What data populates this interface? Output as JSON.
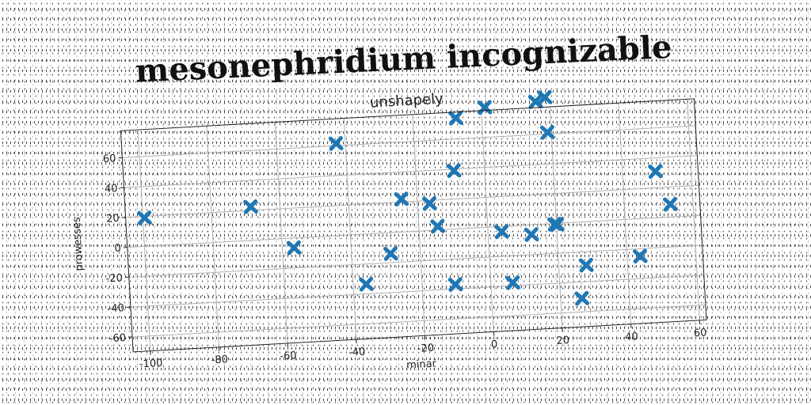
{
  "page": {
    "title": "mesonephridium incognizable"
  },
  "chart_data": {
    "type": "scatter",
    "title": "unshapely",
    "xlabel": "minar",
    "ylabel": "prowesses",
    "xlim": [
      -105,
      62
    ],
    "ylim": [
      -70,
      78
    ],
    "xticks": [
      -100,
      -80,
      -60,
      -40,
      -20,
      0,
      20,
      40,
      60
    ],
    "yticks": [
      -60,
      -40,
      -20,
      0,
      20,
      40,
      60
    ],
    "grid": true,
    "marker": "X",
    "color": "#1f77b4",
    "series": [
      {
        "x": [
          -99.5,
          -68.5,
          -56.6,
          -42.7,
          -36.2,
          -28.6,
          -24.6,
          -16.5,
          -14.5,
          -10.3,
          -8.9,
          -7.5,
          1.1,
          4.0,
          6.4,
          12.6,
          15.9,
          18.7,
          18.9,
          19.5,
          20.2,
          26.2,
          28.0,
          43.8,
          49.6,
          53.4
        ],
        "y": [
          19.0,
          22.5,
          -6.5,
          61.5,
          -33.5,
          -14.0,
          22.0,
          18.0,
          2.5,
          -37.0,
          39.0,
          74.0,
          80.0,
          -3.5,
          -38.0,
          -6.5,
          82.0,
          84.5,
          61.0,
          -0.5,
          -0.8,
          -51.0,
          -29.0,
          -25.0,
          31.0,
          8.5
        ]
      }
    ]
  }
}
